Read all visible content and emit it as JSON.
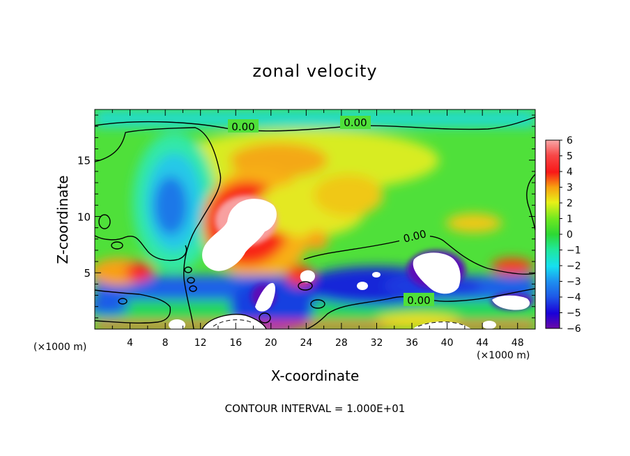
{
  "chart_data": {
    "type": "heatmap",
    "title": "zonal velocity",
    "xlabel": "X-coordinate",
    "ylabel": "Z-coordinate",
    "x_unit_label": "(×1000 m)",
    "footer": "CONTOUR INTERVAL = 1.000E+01",
    "xlim": [
      0,
      50
    ],
    "ylim": [
      0,
      19.5
    ],
    "x_ticks": [
      "4",
      "8",
      "12",
      "16",
      "20",
      "24",
      "28",
      "32",
      "36",
      "40",
      "44",
      "48"
    ],
    "y_ticks": [
      "5",
      "10",
      "15"
    ],
    "colorbar": {
      "ticks": [
        "6",
        "5",
        "4",
        "3",
        "2",
        "1",
        "0",
        "−1",
        "−2",
        "−3",
        "−4",
        "−5",
        "−6"
      ],
      "range": [
        -6,
        6
      ]
    },
    "contour_labels": [
      "0.00",
      "0.00",
      "0.00",
      "0.00"
    ],
    "features": [
      {
        "kind": "maximum",
        "x": 19,
        "z": 9,
        "value": 6.5
      },
      {
        "kind": "minimum",
        "x": 9,
        "z": 11,
        "value": -3
      }
    ]
  }
}
